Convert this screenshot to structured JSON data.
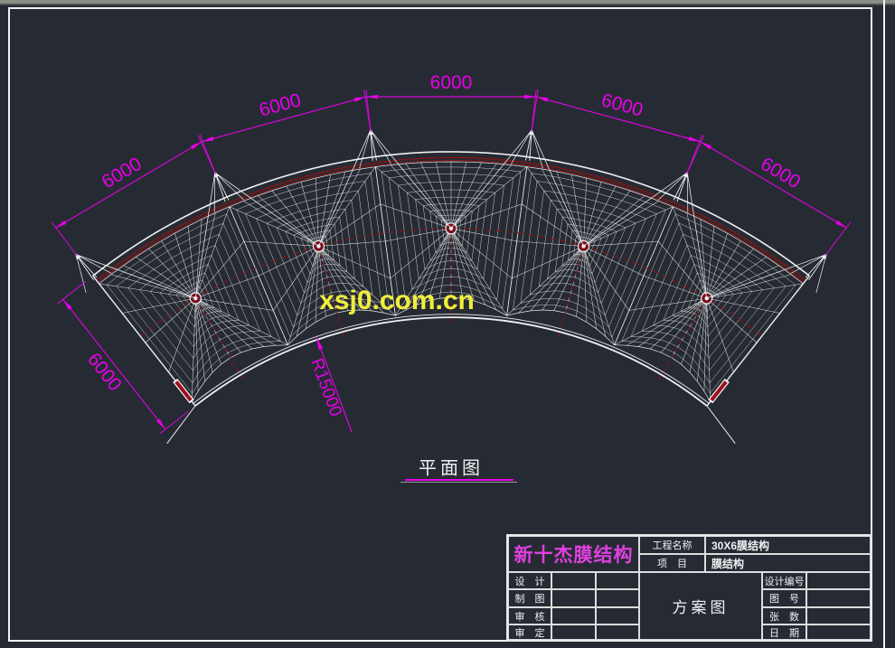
{
  "drawing": {
    "plan_label": "平面图",
    "watermark": "xsj0.com.cn",
    "radius_label": "R15000",
    "span_dims": [
      "6000",
      "6000",
      "6000",
      "6000",
      "6000"
    ],
    "depth_dim": "6000"
  },
  "title_block": {
    "company": "新十杰膜结构",
    "rows_top": [
      {
        "label": "工程名称",
        "value": "30X6膜结构"
      },
      {
        "label": "项　目",
        "value": "膜结构"
      }
    ],
    "left_labels": [
      "设　计",
      "制　图",
      "审　核",
      "审　定"
    ],
    "center_title": "方案图",
    "right_labels": [
      "设计编号",
      "图　号",
      "张　数",
      "日　期"
    ]
  },
  "colors": {
    "background": "#262b33",
    "line_white": "#eef0f2",
    "line_red": "#8e1212",
    "dimension_magenta": "#e800e8",
    "watermark_yellow": "#f0ee3c",
    "company_magenta": "#e040e0"
  }
}
